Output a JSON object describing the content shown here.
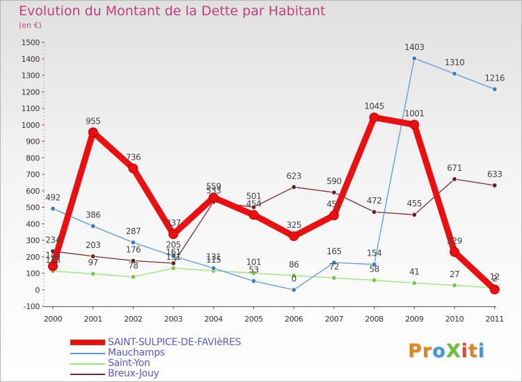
{
  "header": {
    "title": "Evolution du Montant de la Dette par Habitant",
    "unit_label": "(en €)"
  },
  "logo": {
    "text": "ProXiti",
    "letters": [
      {
        "ch": "P",
        "color": "#e0861a"
      },
      {
        "ch": "r",
        "color": "#e0861a"
      },
      {
        "ch": "o",
        "color": "#3f9ad6"
      },
      {
        "ch": "X",
        "color": "#6cbf3a"
      },
      {
        "ch": "i",
        "color": "#d64a3a"
      },
      {
        "ch": "t",
        "color": "#e0861a"
      },
      {
        "ch": "i",
        "color": "#3f9ad6"
      }
    ]
  },
  "chart_data": {
    "type": "line",
    "title": "Evolution du Montant de la Dette par Habitant",
    "subtitle": "(en €)",
    "xlabel": "",
    "ylabel": "",
    "x": [
      "2000",
      "2001",
      "2002",
      "2003",
      "2004",
      "2005",
      "2006",
      "2007",
      "2008",
      "2009",
      "2010",
      "2011"
    ],
    "ylim": [
      -100,
      1500
    ],
    "yticks": [
      -100,
      0,
      100,
      200,
      300,
      400,
      500,
      600,
      700,
      800,
      900,
      1000,
      1100,
      1200,
      1300,
      1400,
      1500
    ],
    "grid": false,
    "legend_position": "bottom-left",
    "series": [
      {
        "name": "SAINT-SULPICE-DE-FAVIèRES",
        "color": "#e81010",
        "point_color": "#e81010",
        "values": [
          143,
          955,
          736,
          337,
          559,
          454,
          325,
          451,
          1045,
          1001,
          229,
          2
        ],
        "labels": [
          "143",
          "955",
          "736",
          "337",
          "559",
          "454",
          "325",
          "451",
          "1045",
          "1001",
          "229",
          "2"
        ]
      },
      {
        "name": "Mauchamps",
        "color": "#5b9bd5",
        "point_color": "#3a7cc0",
        "values": [
          492,
          386,
          287,
          205,
          131,
          53,
          0,
          165,
          154,
          1403,
          1310,
          1216
        ],
        "labels": [
          "492",
          "386",
          "287",
          "205",
          "131",
          "53",
          "0",
          "165",
          "154",
          "1403",
          "1310",
          "1216"
        ]
      },
      {
        "name": "Saint-Yon",
        "color": "#9be07a",
        "point_color": "#74c94a",
        "values": [
          113,
          97,
          78,
          131,
          115,
          101,
          86,
          72,
          58,
          41,
          27,
          12
        ],
        "labels": [
          "113",
          "97",
          "78",
          "131",
          "115",
          "101",
          "86",
          "72",
          "58",
          "41",
          "27",
          "12"
        ]
      },
      {
        "name": "Breux-Jouy",
        "color": "#7a2a2a",
        "point_color": "#6a1f1f",
        "values": [
          234,
          203,
          176,
          161,
          533,
          501,
          623,
          590,
          472,
          455,
          671,
          633
        ],
        "labels": [
          "234",
          "203",
          "176",
          "161",
          "533",
          "501",
          "623",
          "590",
          "472",
          "455",
          "671",
          "633"
        ]
      }
    ]
  }
}
